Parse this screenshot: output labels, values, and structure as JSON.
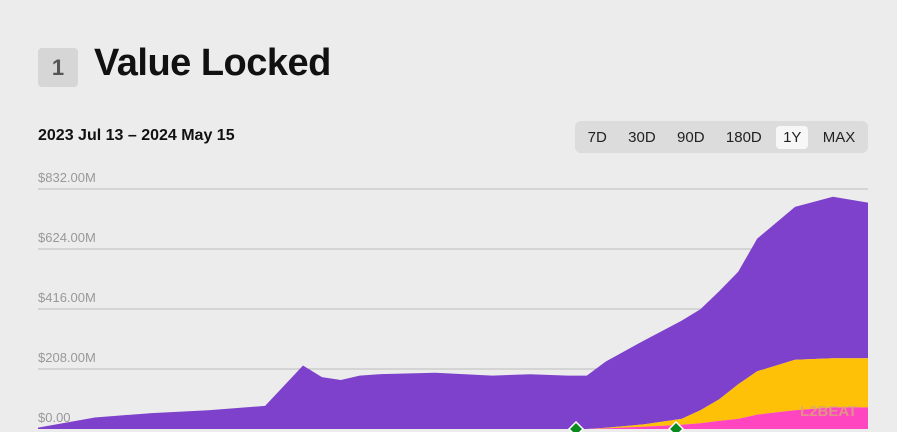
{
  "section": {
    "number": "1",
    "title": "Value Locked"
  },
  "date_range": "2023 Jul 13 – 2024 May 15",
  "range_tabs": [
    {
      "label": "7D",
      "active": false
    },
    {
      "label": "30D",
      "active": false
    },
    {
      "label": "90D",
      "active": false
    },
    {
      "label": "180D",
      "active": false
    },
    {
      "label": "1Y",
      "active": true
    },
    {
      "label": "MAX",
      "active": false
    }
  ],
  "watermark": "L2BEAT",
  "chart_data": {
    "type": "area",
    "stacked": true,
    "x_start": "2023-07-13",
    "x_end": "2024-05-15",
    "ylim": [
      0,
      832
    ],
    "yticks": [
      0,
      208,
      416,
      624,
      832
    ],
    "ytick_labels": [
      "$0.00",
      "$208.00M",
      "$416.00M",
      "$624.00M",
      "$832.00M"
    ],
    "grid": true,
    "colors": {
      "series_1": "#ff46c0",
      "series_2": "#ffc107",
      "series_3": "#7e41cc",
      "marker": "#0b8a1e"
    },
    "x": [
      "2023-07-13",
      "2023-08-03",
      "2023-08-24",
      "2023-09-14",
      "2023-10-05",
      "2023-10-19",
      "2023-10-26",
      "2023-11-02",
      "2023-11-09",
      "2023-11-16",
      "2023-12-07",
      "2023-12-28",
      "2024-01-11",
      "2024-01-25",
      "2024-02-01",
      "2024-02-08",
      "2024-02-22",
      "2024-03-07",
      "2024-03-14",
      "2024-03-21",
      "2024-03-28",
      "2024-04-04",
      "2024-04-18",
      "2024-05-02",
      "2024-05-15"
    ],
    "series": [
      {
        "values": [
          0,
          0,
          0,
          0,
          0,
          0,
          0,
          0,
          0,
          0,
          0,
          0,
          0,
          0,
          0,
          2,
          8,
          15,
          20,
          28,
          35,
          50,
          65,
          75,
          75
        ]
      },
      {
        "values": [
          0,
          0,
          0,
          0,
          0,
          0,
          0,
          0,
          0,
          0,
          0,
          0,
          0,
          0,
          0,
          2,
          8,
          20,
          45,
          75,
          120,
          150,
          175,
          170,
          170
        ]
      },
      {
        "values": [
          5,
          40,
          55,
          65,
          80,
          220,
          180,
          170,
          185,
          190,
          195,
          185,
          190,
          185,
          185,
          230,
          290,
          340,
          350,
          375,
          390,
          460,
          530,
          560,
          540
        ]
      }
    ],
    "markers": [
      {
        "x": "2024-01-28",
        "type": "diamond"
      },
      {
        "x": "2024-03-05",
        "type": "diamond"
      }
    ]
  }
}
